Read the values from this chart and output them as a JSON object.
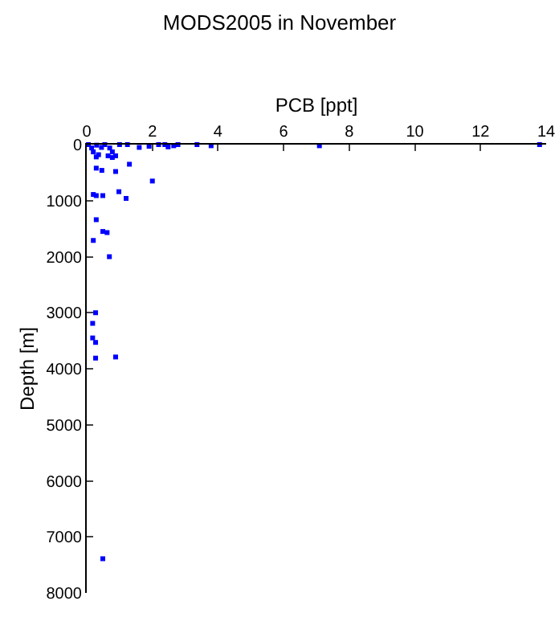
{
  "chart_data": {
    "type": "scatter",
    "title": "MODS2005 in November",
    "xlabel": "PCB [ppt]",
    "ylabel": "Depth [m]",
    "x": [
      0.05,
      0.3,
      0.55,
      1.0,
      0.15,
      0.45,
      0.7,
      1.24,
      1.6,
      1.9,
      2.19,
      2.38,
      2.48,
      2.65,
      2.78,
      3.36,
      3.79,
      7.09,
      13.8,
      0.2,
      0.78,
      0.36,
      0.29,
      0.65,
      0.88,
      0.78,
      1.3,
      0.29,
      0.46,
      0.88,
      2.0,
      0.2,
      0.29,
      0.49,
      0.98,
      1.2,
      0.29,
      0.49,
      0.62,
      0.2,
      0.69,
      0.27,
      0.18,
      0.18,
      0.27,
      0.27,
      0.88,
      0.49
    ],
    "values": [
      0,
      10,
      0,
      0,
      60,
      50,
      60,
      0,
      50,
      30,
      0,
      0,
      40,
      20,
      0,
      0,
      20,
      20,
      0,
      130,
      130,
      180,
      220,
      200,
      200,
      230,
      350,
      420,
      460,
      480,
      650,
      890,
      910,
      910,
      840,
      960,
      1340,
      1550,
      1570,
      1710,
      2000,
      3000,
      3190,
      3450,
      3530,
      3810,
      3790,
      7390
    ],
    "color": "#0000ff",
    "marker": "square",
    "xlim": [
      0,
      14
    ],
    "xticks": [
      0,
      2,
      4,
      6,
      8,
      10,
      12,
      14
    ],
    "ylim": [
      8000,
      0
    ],
    "yticks": [
      0,
      1000,
      2000,
      3000,
      4000,
      5000,
      6000,
      7000,
      8000
    ],
    "grid": false
  }
}
